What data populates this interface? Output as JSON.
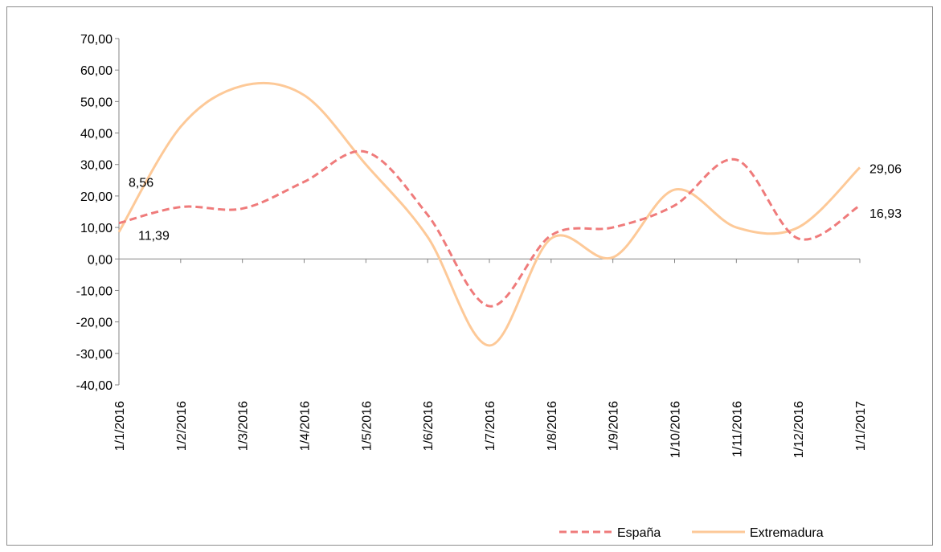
{
  "chart_data": {
    "type": "line",
    "title": "",
    "xlabel": "",
    "ylabel": "",
    "categories": [
      "1/1/2016",
      "1/2/2016",
      "1/3/2016",
      "1/4/2016",
      "1/5/2016",
      "1/6/2016",
      "1/7/2016",
      "1/8/2016",
      "1/9/2016",
      "1/10/2016",
      "1/11/2016",
      "1/12/2016",
      "1/1/2017"
    ],
    "y_ticks": [
      "70,00",
      "60,00",
      "50,00",
      "40,00",
      "30,00",
      "20,00",
      "10,00",
      "0,00",
      "-10,00",
      "-20,00",
      "-30,00",
      "-40,00"
    ],
    "ylim": [
      -40,
      70
    ],
    "grid": false,
    "legend_position": "bottom-right",
    "series": [
      {
        "name": "España",
        "color": "#ef7b7b",
        "dash": "dashed",
        "values": [
          11.39,
          16.5,
          16.0,
          24.5,
          34.0,
          14.0,
          -15.0,
          7.5,
          10.0,
          17.0,
          31.5,
          6.5,
          16.93
        ]
      },
      {
        "name": "Extremadura",
        "color": "#fdc998",
        "dash": "solid",
        "values": [
          8.56,
          42.0,
          55.0,
          52.0,
          30.0,
          7.0,
          -27.5,
          6.5,
          0.5,
          22.0,
          10.0,
          10.0,
          29.06
        ]
      }
    ],
    "data_labels": [
      {
        "series": "Extremadura",
        "index": 0,
        "text": "8,56"
      },
      {
        "series": "España",
        "index": 0,
        "text": "11,39"
      },
      {
        "series": "Extremadura",
        "index": 12,
        "text": "29,06"
      },
      {
        "series": "España",
        "index": 12,
        "text": "16,93"
      }
    ]
  }
}
